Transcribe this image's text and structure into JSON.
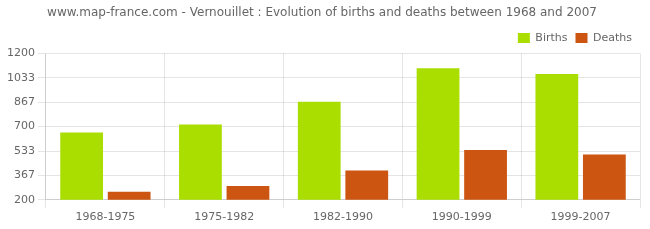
{
  "chart_data": {
    "type": "bar",
    "title": "www.map-france.com - Vernouillet : Evolution of births and deaths between 1968 and 2007",
    "categories": [
      "1968-1975",
      "1975-1982",
      "1982-1990",
      "1990-1999",
      "1999-2007"
    ],
    "series": [
      {
        "name": "Births",
        "color": "#aadd00",
        "values": [
          660,
          715,
          870,
          1098,
          1060
        ]
      },
      {
        "name": "Deaths",
        "color": "#cc5511",
        "values": [
          255,
          295,
          400,
          540,
          510
        ]
      }
    ],
    "ylim": [
      200,
      1200
    ],
    "yticks": [
      200,
      367,
      533,
      700,
      867,
      1033,
      1200
    ],
    "grid": true,
    "legend": "upper right"
  }
}
